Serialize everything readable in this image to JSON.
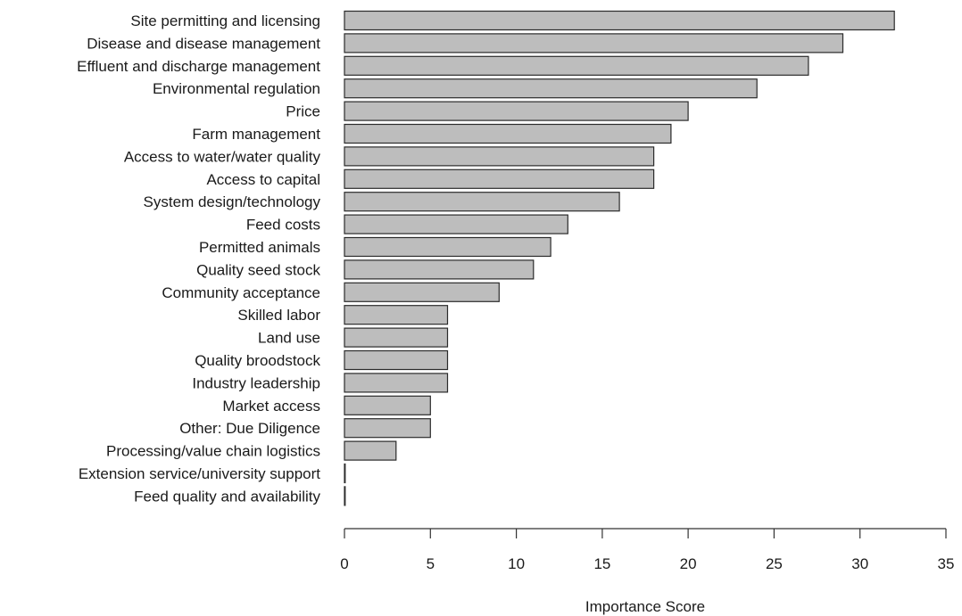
{
  "chart_data": {
    "type": "bar",
    "orientation": "horizontal",
    "categories": [
      "Site permitting and licensing",
      "Disease and disease management",
      "Effluent and discharge management",
      "Environmental regulation",
      "Price",
      "Farm management",
      "Access to water/water quality",
      "Access to capital",
      "System design/technology",
      "Feed costs",
      "Permitted animals",
      "Quality seed stock",
      "Community acceptance",
      "Skilled labor",
      "Land use",
      "Quality broodstock",
      "Industry leadership",
      "Market access",
      "Other: Due Diligence ",
      "Processing/value chain logistics",
      "Extension service/university support",
      "Feed quality and availability"
    ],
    "values": [
      32,
      29,
      27,
      24,
      20,
      19,
      18,
      18,
      16,
      13,
      12,
      11,
      9,
      6,
      6,
      6,
      6,
      5,
      5,
      3,
      0,
      0
    ],
    "title": "",
    "xlabel": "Importance Score",
    "ylabel": "",
    "xlim": [
      0,
      35
    ],
    "xticks": [
      "0",
      "5",
      "10",
      "15",
      "20",
      "25",
      "30",
      "35"
    ],
    "grid": false,
    "legend": "none",
    "bar_color": "#bdbdbd",
    "bar_edge_color": "#2b2b2b"
  }
}
